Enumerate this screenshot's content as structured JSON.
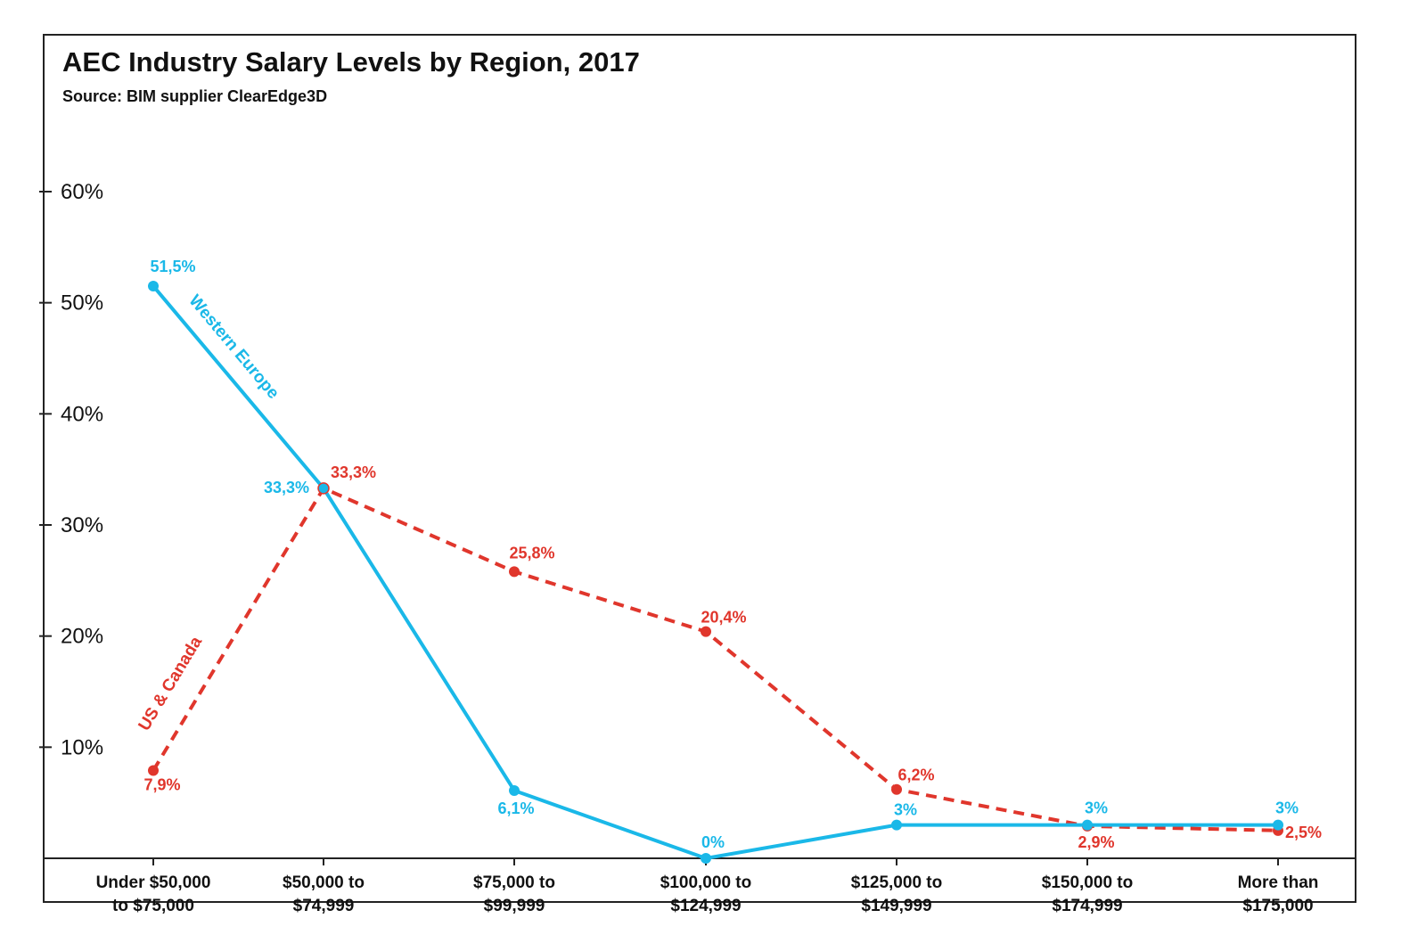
{
  "chart_data": {
    "type": "line",
    "title": "AEC Industry Salary Levels by Region, 2017",
    "subtitle": "Source: BIM supplier ClearEdge3D",
    "xlabel": "",
    "ylabel": "",
    "categories": [
      [
        "Under $50,000",
        "to $75,000"
      ],
      [
        "$50,000 to",
        "$74,999"
      ],
      [
        "$75,000 to",
        "$99,999"
      ],
      [
        "$100,000 to",
        "$124,999"
      ],
      [
        "$125,000 to",
        "$149,999"
      ],
      [
        "$150,000 to",
        "$174,999"
      ],
      [
        "More than",
        "$175,000"
      ]
    ],
    "ylim": [
      0,
      60
    ],
    "yticks": [
      {
        "value": 10,
        "label": "10%"
      },
      {
        "value": 20,
        "label": "20%"
      },
      {
        "value": 30,
        "label": "30%"
      },
      {
        "value": 40,
        "label": "40%"
      },
      {
        "value": 50,
        "label": "50%"
      },
      {
        "value": 60,
        "label": "60%"
      }
    ],
    "grid": false,
    "legend": "inline labels along lines",
    "series": [
      {
        "name": "Western Europe",
        "color": "#1ab8e8",
        "style": "solid",
        "values": [
          51.5,
          33.3,
          6.1,
          0,
          3,
          3,
          3
        ],
        "labels": [
          "51,5%",
          "33,3%",
          "6,1%",
          "0%",
          "3%",
          "3%",
          "3%"
        ]
      },
      {
        "name": "US & Canada",
        "color": "#e0362c",
        "style": "dashed",
        "values": [
          7.9,
          33.3,
          25.8,
          20.4,
          6.2,
          2.9,
          2.5
        ],
        "labels": [
          "7,9%",
          "33,3%",
          "25,8%",
          "20,4%",
          "6,2%",
          "2,9%",
          "2,5%"
        ]
      }
    ]
  }
}
